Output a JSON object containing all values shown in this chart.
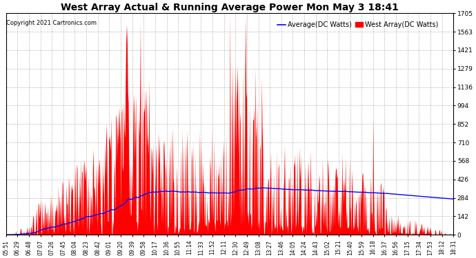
{
  "title": "West Array Actual & Running Average Power Mon May 3 18:41",
  "copyright": "Copyright 2021 Cartronics.com",
  "legend_avg": "Average(DC Watts)",
  "legend_west": "West Array(DC Watts)",
  "ylabel_max": 1704.8,
  "ylabel_min": 0.0,
  "yticks": [
    0.0,
    142.1,
    284.1,
    426.2,
    568.3,
    710.3,
    852.4,
    994.4,
    1136.5,
    1278.6,
    1420.6,
    1562.7,
    1704.8
  ],
  "xtick_labels": [
    "05:51",
    "06:29",
    "06:48",
    "07:07",
    "07:26",
    "07:45",
    "08:04",
    "08:23",
    "08:42",
    "09:01",
    "09:20",
    "09:39",
    "09:58",
    "10:17",
    "10:36",
    "10:55",
    "11:14",
    "11:33",
    "11:52",
    "12:11",
    "12:30",
    "12:49",
    "13:08",
    "13:27",
    "13:46",
    "14:05",
    "14:24",
    "14:43",
    "15:02",
    "15:21",
    "15:40",
    "15:59",
    "16:18",
    "16:37",
    "16:56",
    "17:15",
    "17:34",
    "17:53",
    "18:12",
    "18:31"
  ],
  "background_color": "#ffffff",
  "fill_color": "#ff0000",
  "line_color": "#0000ff",
  "grid_color": "#aaaaaa",
  "title_color": "#000000",
  "copyright_color": "#000000",
  "legend_avg_color": "#0000ff",
  "legend_west_color": "#ff0000",
  "figwidth": 6.9,
  "figheight": 3.75,
  "dpi": 100
}
